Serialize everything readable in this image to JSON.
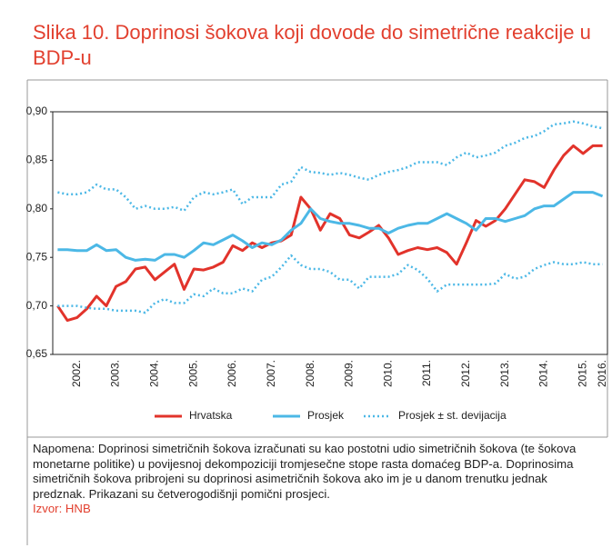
{
  "chart_data": {
    "type": "line",
    "title": "Slika 10. Doprinosi šokova koji dovode do simetrične reakcije u BDP-u",
    "categories": [
      null,
      null,
      "2002.",
      null,
      null,
      null,
      "2003.",
      null,
      null,
      null,
      "2004.",
      null,
      null,
      null,
      "2005.",
      null,
      null,
      null,
      "2006.",
      null,
      null,
      null,
      "2007.",
      null,
      null,
      null,
      "2008.",
      null,
      null,
      null,
      "2009.",
      null,
      null,
      null,
      "2010.",
      null,
      null,
      null,
      "2011.",
      null,
      null,
      null,
      "2012.",
      null,
      null,
      null,
      "2013.",
      null,
      null,
      null,
      "2014.",
      null,
      null,
      null,
      "2015.",
      null,
      "2016."
    ],
    "series": [
      {
        "name": "Hrvatska",
        "color": "#e2332b",
        "values": [
          0.7,
          0.685,
          0.688,
          0.697,
          0.71,
          0.7,
          0.72,
          0.725,
          0.738,
          0.74,
          0.727,
          0.735,
          0.743,
          0.717,
          0.738,
          0.737,
          0.74,
          0.745,
          0.762,
          0.757,
          0.765,
          0.76,
          0.765,
          0.767,
          0.773,
          0.812,
          0.8,
          0.778,
          0.795,
          0.79,
          0.773,
          0.77,
          0.776,
          0.783,
          0.77,
          0.753,
          0.757,
          0.76,
          0.758,
          0.76,
          0.755,
          0.743,
          0.765,
          0.788,
          0.782,
          0.788,
          0.8,
          0.815,
          0.83,
          0.828,
          0.822,
          0.84,
          0.855,
          0.865,
          0.857,
          0.865,
          0.865
        ]
      },
      {
        "name": "Prosjek",
        "color": "#4cb8e6",
        "values": [
          0.758,
          0.758,
          0.757,
          0.757,
          0.763,
          0.757,
          0.758,
          0.75,
          0.747,
          0.748,
          0.747,
          0.753,
          0.753,
          0.75,
          0.757,
          0.765,
          0.763,
          0.768,
          0.773,
          0.767,
          0.76,
          0.765,
          0.763,
          0.768,
          0.778,
          0.785,
          0.8,
          0.79,
          0.787,
          0.785,
          0.785,
          0.783,
          0.78,
          0.78,
          0.775,
          0.78,
          0.783,
          0.785,
          0.785,
          0.79,
          0.795,
          0.79,
          0.785,
          0.778,
          0.79,
          0.79,
          0.787,
          0.79,
          0.793,
          0.8,
          0.803,
          0.803,
          0.81,
          0.817,
          0.817,
          0.817,
          0.813
        ]
      },
      {
        "name": "Prosjek ± st. devijacija",
        "color": "#4cb8e6",
        "dotted": true,
        "upper": [
          0.817,
          0.815,
          0.815,
          0.817,
          0.825,
          0.82,
          0.82,
          0.812,
          0.8,
          0.803,
          0.8,
          0.8,
          0.802,
          0.798,
          0.812,
          0.817,
          0.815,
          0.817,
          0.82,
          0.805,
          0.812,
          0.812,
          0.812,
          0.825,
          0.828,
          0.843,
          0.838,
          0.837,
          0.835,
          0.837,
          0.835,
          0.832,
          0.83,
          0.835,
          0.838,
          0.84,
          0.843,
          0.848,
          0.848,
          0.848,
          0.845,
          0.853,
          0.858,
          0.853,
          0.855,
          0.858,
          0.865,
          0.868,
          0.873,
          0.875,
          0.88,
          0.887,
          0.888,
          0.89,
          0.888,
          0.885,
          0.883
        ],
        "lower": [
          0.7,
          0.7,
          0.7,
          0.698,
          0.697,
          0.697,
          0.695,
          0.695,
          0.695,
          0.693,
          0.703,
          0.707,
          0.703,
          0.703,
          0.712,
          0.71,
          0.718,
          0.713,
          0.713,
          0.718,
          0.715,
          0.727,
          0.73,
          0.74,
          0.752,
          0.742,
          0.738,
          0.738,
          0.735,
          0.727,
          0.727,
          0.718,
          0.73,
          0.73,
          0.73,
          0.733,
          0.742,
          0.737,
          0.728,
          0.715,
          0.722,
          0.722,
          0.722,
          0.722,
          0.722,
          0.723,
          0.733,
          0.728,
          0.73,
          0.738,
          0.742,
          0.745,
          0.743,
          0.743,
          0.745,
          0.743,
          0.743
        ]
      }
    ],
    "ylim": [
      0.65,
      0.9
    ],
    "yticks": [
      {
        "value": 0.65,
        "label": "0,65"
      },
      {
        "value": 0.7,
        "label": "0,70"
      },
      {
        "value": 0.75,
        "label": "0,75"
      },
      {
        "value": 0.8,
        "label": "0,80"
      },
      {
        "value": 0.85,
        "label": "0,85"
      },
      {
        "value": 0.9,
        "label": "0,90"
      }
    ],
    "legend": "bottom",
    "note": "Napomena: Doprinosi simetričnih šokova izračunati su kao postotni udio simetričnih šokova (te šokova monetarne politike) u povijesnoj dekompoziciji tromjesečne stope rasta domaćeg BDP-a. Doprinosima simetričnih šokova pribrojeni su doprinosi asimetričnih šokova ako im je u danom trenutku jednak predznak. Prikazani su četverogodišnji pomični prosjeci.",
    "source": "Izvor: HNB"
  }
}
